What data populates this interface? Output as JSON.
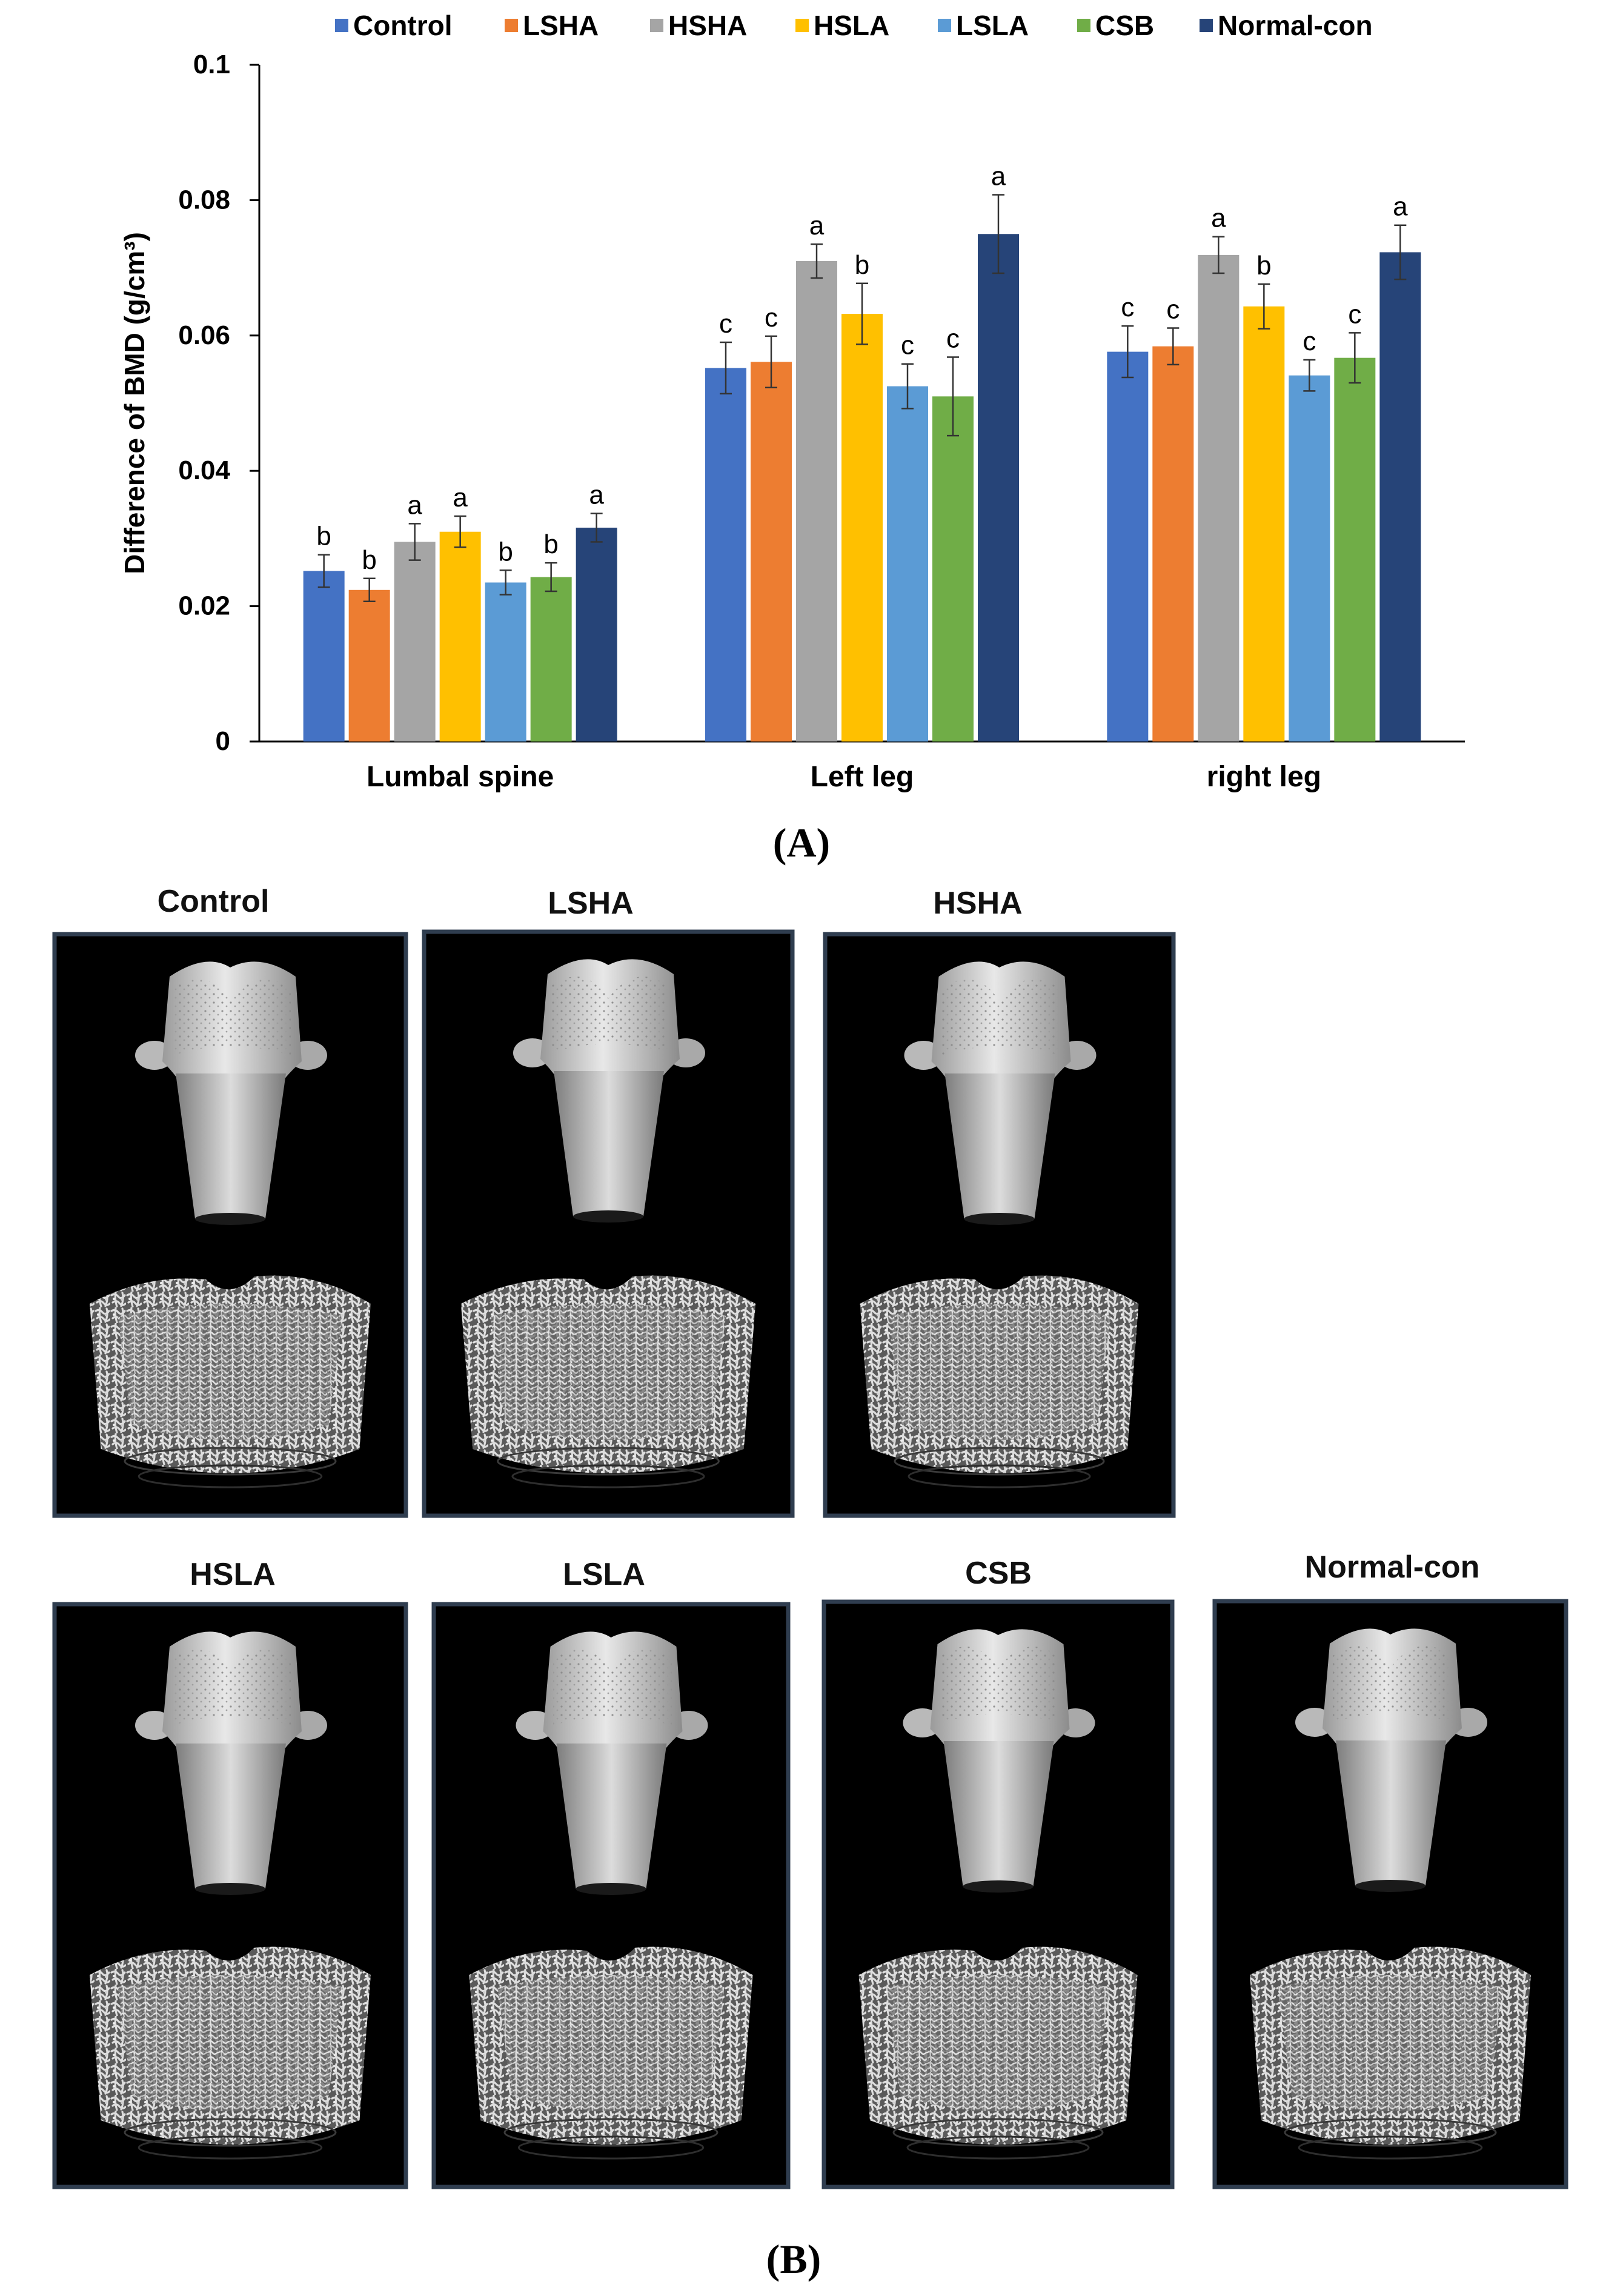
{
  "chart_data": {
    "type": "bar",
    "title": "",
    "xlabel": "",
    "ylabel": "Difference of BMD (g/cm³)",
    "ylim": [
      0,
      0.1
    ],
    "yticks": [
      "0",
      "0.02",
      "0.04",
      "0.06",
      "0.08",
      "0.1"
    ],
    "categories": [
      "Lumbal spine",
      "Left leg",
      "right leg"
    ],
    "legend_position": "top",
    "series": [
      {
        "name": "Control",
        "color": "#4472C4",
        "values": [
          0.0252,
          0.0552,
          0.0576
        ],
        "errors": [
          0.0024,
          0.0038,
          0.0038
        ],
        "letters": [
          "b",
          "c",
          "c"
        ]
      },
      {
        "name": "LSHA",
        "color": "#ED7D31",
        "values": [
          0.0224,
          0.0561,
          0.0584
        ],
        "errors": [
          0.0017,
          0.0038,
          0.0027
        ],
        "letters": [
          "b",
          "c",
          "c"
        ]
      },
      {
        "name": "HSHA",
        "color": "#A5A5A5",
        "values": [
          0.0295,
          0.071,
          0.0719
        ],
        "errors": [
          0.0027,
          0.0025,
          0.0027
        ],
        "letters": [
          "a",
          "a",
          "a"
        ]
      },
      {
        "name": "HSLA",
        "color": "#FFC000",
        "values": [
          0.031,
          0.0632,
          0.0643
        ],
        "errors": [
          0.0023,
          0.0045,
          0.0033
        ],
        "letters": [
          "a",
          "b",
          "b"
        ]
      },
      {
        "name": "LSLA",
        "color": "#5B9BD5",
        "values": [
          0.0235,
          0.0525,
          0.0541
        ],
        "errors": [
          0.0018,
          0.0033,
          0.0023
        ],
        "letters": [
          "b",
          "c",
          "c"
        ]
      },
      {
        "name": "CSB",
        "color": "#70AD47",
        "values": [
          0.0243,
          0.051,
          0.0567
        ],
        "errors": [
          0.0021,
          0.0058,
          0.0037
        ],
        "letters": [
          "b",
          "c",
          "c"
        ]
      },
      {
        "name": "Normal-con",
        "color": "#264478",
        "values": [
          0.0316,
          0.075,
          0.0723
        ],
        "errors": [
          0.0021,
          0.0058,
          0.004
        ],
        "letters": [
          "a",
          "a",
          "a"
        ]
      }
    ]
  },
  "panel_a_label": "(A)",
  "panel_b_label": "(B)",
  "panel_b": {
    "images": [
      {
        "label": "Control"
      },
      {
        "label": "LSHA"
      },
      {
        "label": "HSHA"
      },
      {
        "label": "HSLA"
      },
      {
        "label": "LSLA"
      },
      {
        "label": "CSB"
      },
      {
        "label": "Normal-con"
      }
    ]
  }
}
